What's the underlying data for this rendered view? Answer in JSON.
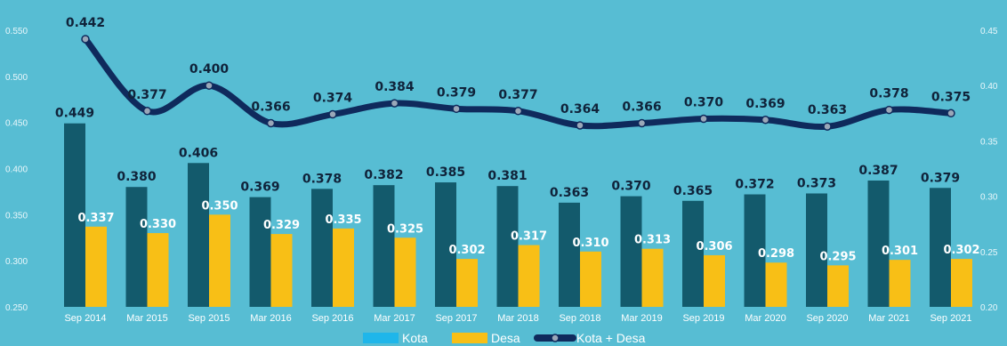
{
  "chart_data": {
    "type": "bar",
    "categories": [
      "Sep 2014",
      "Mar 2015",
      "Sep 2015",
      "Mar 2016",
      "Sep 2016",
      "Mar 2017",
      "Sep 2017",
      "Mar 2018",
      "Sep 2018",
      "Mar 2019",
      "Sep 2019",
      "Mar 2020",
      "Sep 2020",
      "Mar 2021",
      "Sep 2021"
    ],
    "series": [
      {
        "name": "Kota",
        "type": "bar",
        "color": "#135a6c",
        "values": [
          0.449,
          0.38,
          0.406,
          0.369,
          0.378,
          0.382,
          0.385,
          0.381,
          0.363,
          0.37,
          0.365,
          0.372,
          0.373,
          0.387,
          0.379
        ]
      },
      {
        "name": "Desa",
        "type": "bar",
        "color": "#f8bf16",
        "values": [
          0.337,
          0.33,
          0.35,
          0.329,
          0.335,
          0.325,
          0.302,
          0.317,
          0.31,
          0.313,
          0.306,
          0.298,
          0.295,
          0.301,
          0.302
        ]
      },
      {
        "name": "Kota + Desa",
        "type": "line",
        "color": "#0f2a5c",
        "axis": "right",
        "values": [
          0.442,
          0.377,
          0.4,
          0.366,
          0.374,
          0.384,
          0.379,
          0.377,
          0.364,
          0.366,
          0.37,
          0.369,
          0.363,
          0.378,
          0.375
        ]
      }
    ],
    "left_axis": {
      "ylim": [
        0.25,
        0.55
      ],
      "ticks": [
        "0.250",
        "0.300",
        "0.350",
        "0.400",
        "0.450",
        "0.500",
        "0.550"
      ]
    },
    "right_axis": {
      "ylim": [
        0.2,
        0.45
      ],
      "ticks": [
        "0.20",
        "0.25",
        "0.30",
        "0.35",
        "0.40",
        "0.45"
      ]
    },
    "legend": {
      "position": "bottom",
      "items": [
        "Kota",
        "Desa",
        "Kota + Desa"
      ],
      "kota_swatch": "#1fb6ea"
    },
    "background": "#57bdd3",
    "grid": false
  }
}
